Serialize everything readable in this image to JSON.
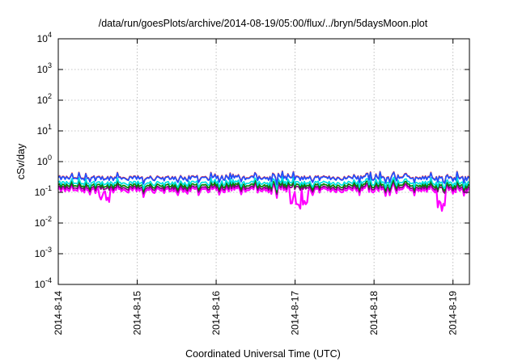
{
  "chart_data": {
    "type": "line",
    "title": "/data/run/goesPlots/archive/2014-08-19/05:00/flux/../bryn/5daysMoon.plot",
    "xlabel": "Coordinated Universal Time (UTC)",
    "ylabel": "cSv/day",
    "yscale": "log",
    "ylim": [
      0.0001,
      10000
    ],
    "xlim": [
      "2014-08-14",
      "2014-08-19 05:00"
    ],
    "grid": true,
    "x_ticks": [
      "2014-8-14",
      "2014-8-15",
      "2014-8-16",
      "2014-8-17",
      "2014-8-18",
      "2014-8-19"
    ],
    "y_ticks": [
      {
        "base": "10",
        "exp": "-4"
      },
      {
        "base": "10",
        "exp": "-3"
      },
      {
        "base": "10",
        "exp": "-2"
      },
      {
        "base": "10",
        "exp": "-1"
      },
      {
        "base": "10",
        "exp": "0"
      },
      {
        "base": "10",
        "exp": "1"
      },
      {
        "base": "10",
        "exp": "2"
      },
      {
        "base": "10",
        "exp": "3"
      },
      {
        "base": "10",
        "exp": "4"
      }
    ],
    "series": [
      {
        "color": "#ff00ff",
        "baseline": 0.12
      },
      {
        "color": "#800080",
        "baseline": 0.14
      },
      {
        "color": "#008000",
        "baseline": 0.165
      },
      {
        "color": "#00e0e0",
        "baseline": 0.2
      },
      {
        "color": "#ff2020",
        "baseline": 0.3
      },
      {
        "color": "#1e50ff",
        "baseline": 0.29
      }
    ]
  }
}
